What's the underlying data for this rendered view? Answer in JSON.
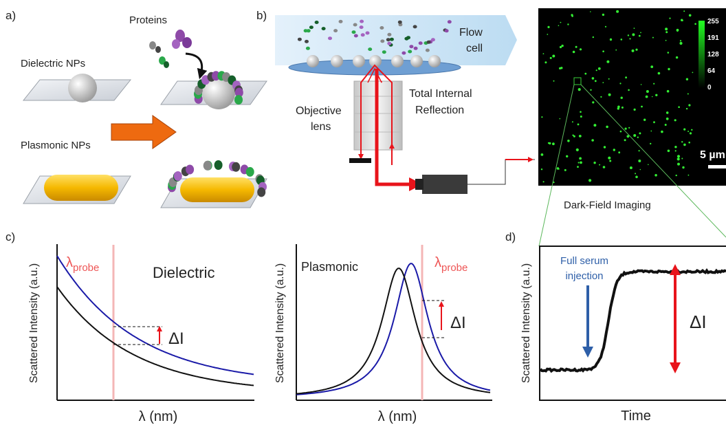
{
  "panels": {
    "a": {
      "label": "a)",
      "proteins": "Proteins",
      "dielectric": "Dielectric NPs",
      "plasmonic": "Plasmonic NPs"
    },
    "b": {
      "label": "b)",
      "flow_cell": [
        "Flow",
        "cell"
      ],
      "tir": [
        "Total Internal",
        "Reflection"
      ],
      "objective": [
        "Objective",
        "lens"
      ],
      "caption": "Dark-Field Imaging",
      "scale_bar": "5 µm",
      "colorbar_ticks": [
        "255",
        "191",
        "128",
        "64",
        "0"
      ]
    },
    "c": {
      "label": "c)",
      "left": {
        "ylabel": "Scattered Intensity (a.u.)",
        "xlabel": "λ (nm)",
        "title": "Dielectric",
        "probe": {
          "symbol": "λ",
          "subscript": "probe"
        },
        "delta": "ΔI"
      },
      "right": {
        "ylabel": "Scattered Intensity (a.u.)",
        "xlabel": "λ (nm)",
        "title": "Plasmonic",
        "probe": {
          "symbol": "λ",
          "subscript": "probe"
        },
        "delta": "ΔI"
      }
    },
    "d": {
      "label": "d)",
      "ylabel": "Scattered Intensity (a.u.)",
      "xlabel": "Time",
      "annotation": [
        "Full serum",
        "injection"
      ],
      "delta": "ΔI"
    }
  }
}
